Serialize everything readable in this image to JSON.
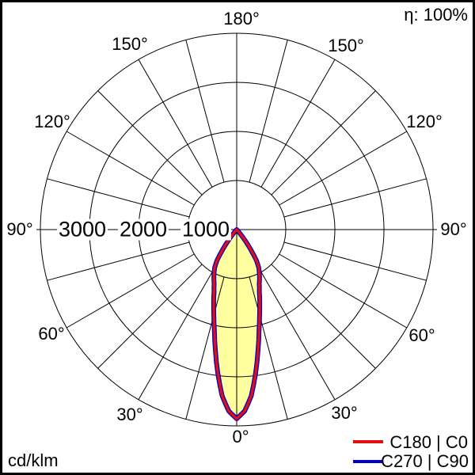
{
  "header": {
    "efficiency": "η: 100%"
  },
  "footer": {
    "unit": "cd/klm"
  },
  "polar": {
    "angle_labels": [
      "180°",
      "150°",
      "150°",
      "120°",
      "120°",
      "90°",
      "90°",
      "60°",
      "60°",
      "30°",
      "30°",
      "0°"
    ],
    "ring_labels": [
      "3000",
      "2000",
      "1000"
    ]
  },
  "legend": {
    "items": [
      {
        "label": "C180 | C0",
        "color": "#e01010"
      },
      {
        "label": "C270 | C90",
        "color": "#0000cc"
      }
    ]
  },
  "chart_data": {
    "type": "line",
    "polar": true,
    "unit": "cd/klm",
    "efficiency_pct": 100,
    "max_value": 4000,
    "rings": [
      1000,
      2000,
      3000,
      4000
    ],
    "ring_tick_labels": [
      "3000",
      "2000",
      "1000"
    ],
    "angle_tick_step_deg": 15,
    "angle_labels_deg": [
      180,
      150,
      120,
      90,
      60,
      30,
      0
    ],
    "fill_color": "#ffffa0",
    "gamma_deg": [
      0,
      2.5,
      5,
      7.5,
      10,
      12.5,
      15,
      17.5,
      20,
      22.5,
      25,
      27.5,
      30,
      32.5,
      35,
      37.5,
      40,
      42.5,
      45
    ],
    "series": [
      {
        "name": "C180 | C0",
        "color": "#e01010",
        "values": [
          3855,
          3700,
          3400,
          2950,
          2500,
          2100,
          1800,
          1560,
          1350,
          1200,
          1100,
          1000,
          900,
          750,
          500,
          280,
          100,
          20,
          0
        ]
      },
      {
        "name": "C270 | C90",
        "color": "#0000cc",
        "values": [
          3855,
          3700,
          3400,
          2950,
          2500,
          2100,
          1800,
          1560,
          1350,
          1200,
          1100,
          1000,
          900,
          750,
          500,
          280,
          100,
          20,
          0
        ]
      }
    ]
  }
}
